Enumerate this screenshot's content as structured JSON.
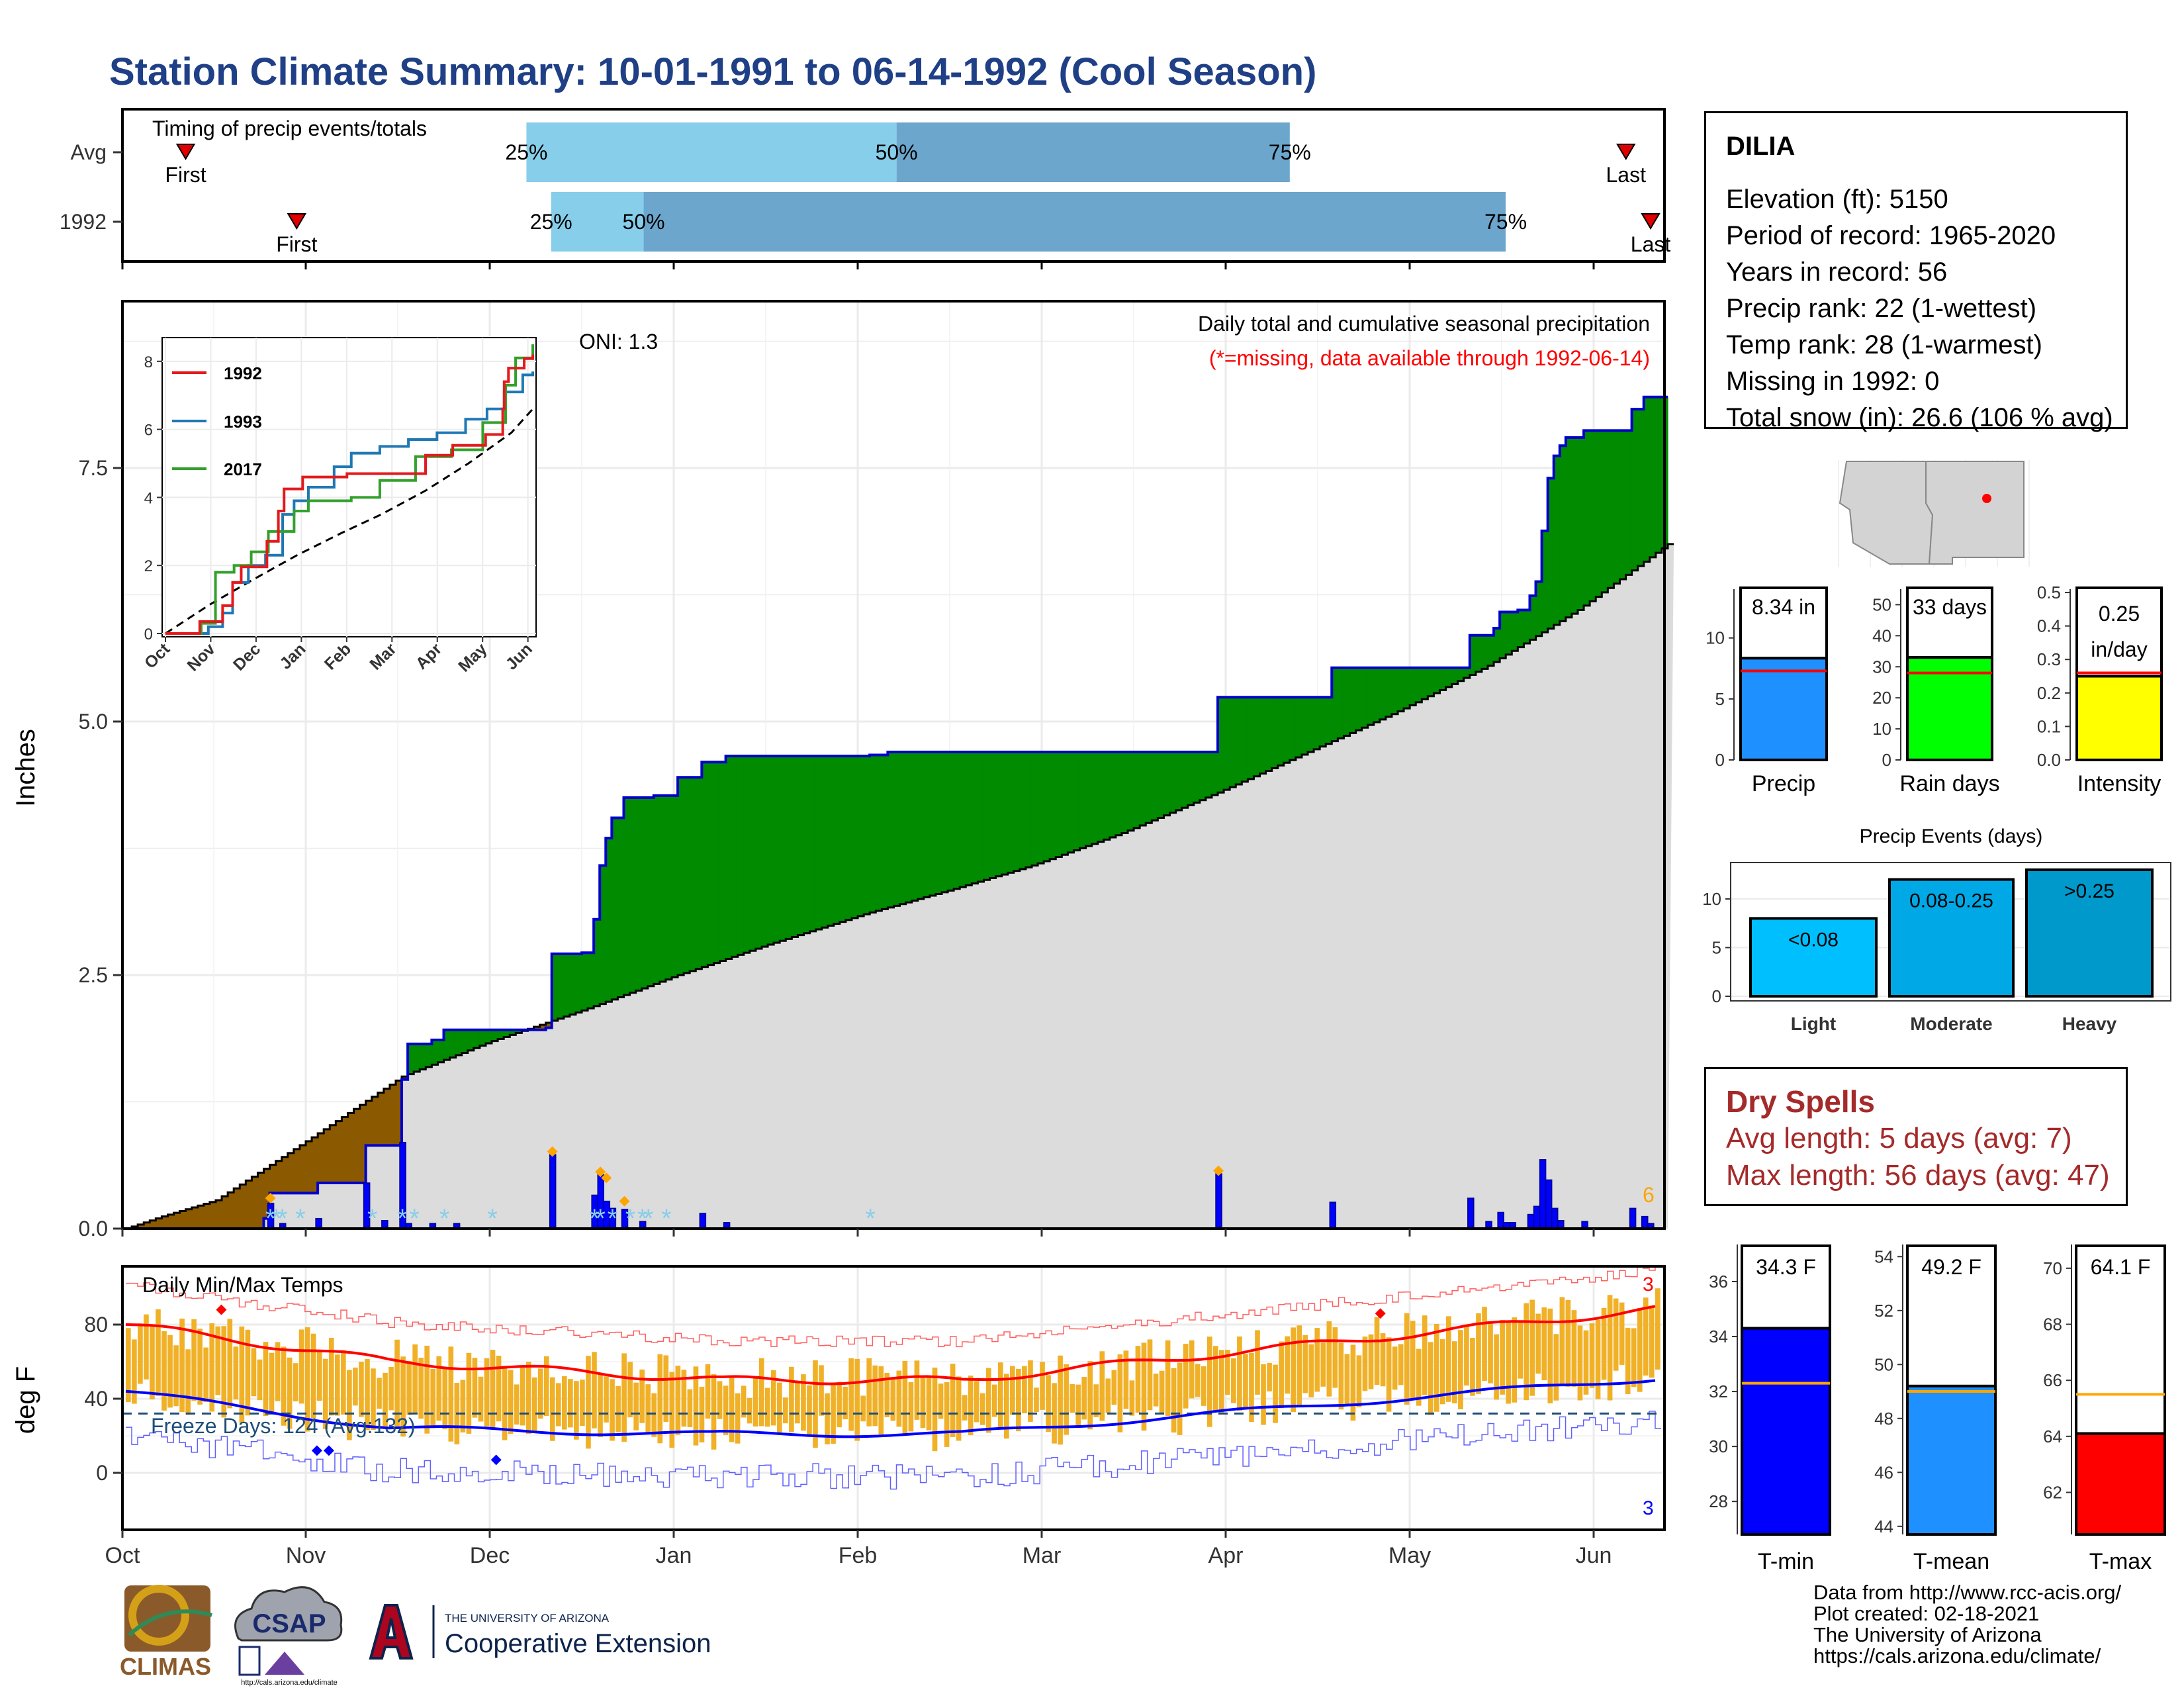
{
  "title": "Station Climate Summary: 10-01-1991 to 06-14-1992 (Cool Season)",
  "timing": {
    "label": "Timing of precip events/totals",
    "rows": [
      "Avg",
      "1992"
    ],
    "pct_labels": [
      "25%",
      "50%",
      "75%"
    ],
    "first_label": "First",
    "last_label": "Last",
    "avg": {
      "first": 0.041,
      "p25": 0.262,
      "p50": 0.502,
      "p75": 0.757,
      "last": 0.975
    },
    "y1992": {
      "first": 0.113,
      "p25": 0.278,
      "p50": 0.338,
      "p75": 0.897,
      "last": 0.991
    },
    "colors": {
      "light": "#87ceeb",
      "dark": "#6ca6cd",
      "marker": "#e00000"
    }
  },
  "precip_panel": {
    "ylabel": "Inches",
    "yticks": [
      "0.0",
      "2.5",
      "5.0",
      "7.5"
    ],
    "oni": "ONI: 1.3",
    "note1": "Daily total and cumulative seasonal precipitation",
    "note2": "(*=missing, data available through 1992-06-14)",
    "count": "6",
    "colors": {
      "above": "#008b00",
      "below": "#8b5a00",
      "avg": "#dcdcdc",
      "line": "#0000cd",
      "bar": "#0000ff",
      "note2": "#ff0000",
      "count": "#ffa500",
      "snow": "#87ceeb"
    }
  },
  "inset": {
    "legend": [
      "1992",
      "1993",
      "2017"
    ],
    "legend_colors": [
      "#e31a1c",
      "#1f78b4",
      "#33a02c"
    ],
    "yticks": [
      "0",
      "2",
      "4",
      "6",
      "8"
    ],
    "xticks": [
      "Oct",
      "Nov",
      "Dec",
      "Jan",
      "Feb",
      "Mar",
      "Apr",
      "May",
      "Jun"
    ]
  },
  "months": [
    "Oct",
    "Nov",
    "Dec",
    "Jan",
    "Feb",
    "Mar",
    "Apr",
    "May",
    "Jun"
  ],
  "temp_panel": {
    "label": "Daily Min/Max Temps",
    "ylabel": "deg F",
    "yticks": [
      "0",
      "40",
      "80"
    ],
    "freeze": "Freeze Days: 124 (Avg:132)",
    "count_top": "3",
    "count_bottom": "3",
    "colors": {
      "bar": "#f0b128",
      "max": "#ff0000",
      "min": "#0000ff",
      "freeze": "#1f4e79"
    }
  },
  "station": {
    "name": "DILIA",
    "lines": [
      "Elevation (ft): 5150",
      "Period of record: 1965-2020",
      "Years in record: 56",
      "Precip rank: 22 (1-wettest)",
      "Temp rank: 28 (1-warmest)",
      "Missing in 1992: 0",
      "Total snow (in): 26.6 (106 % avg)"
    ]
  },
  "mini_bars": [
    {
      "label": "Precip",
      "value_text": "8.34 in",
      "value": 8.34,
      "avg": 7.3,
      "ymax": 14,
      "yticks": [
        "0",
        "5",
        "10"
      ],
      "tick_vals": [
        0,
        5,
        10
      ],
      "color": "#1e90ff"
    },
    {
      "label": "Rain days",
      "value_text": "33 days",
      "value": 33,
      "avg": 28,
      "ymax": 55,
      "yticks": [
        "0",
        "10",
        "20",
        "30",
        "40",
        "50"
      ],
      "tick_vals": [
        0,
        10,
        20,
        30,
        40,
        50
      ],
      "color": "#00ff00"
    },
    {
      "label": "Intensity",
      "value_text": "0.25 in/day",
      "value": 0.25,
      "avg": 0.26,
      "ymax": 0.51,
      "yticks": [
        "0.0",
        "0.1",
        "0.2",
        "0.3",
        "0.4",
        "0.5"
      ],
      "tick_vals": [
        0,
        0.1,
        0.2,
        0.3,
        0.4,
        0.5
      ],
      "color": "#ffff00"
    }
  ],
  "events": {
    "title": "Precip Events (days)",
    "categories": [
      "Light",
      "Moderate",
      "Heavy"
    ],
    "bar_labels": [
      "<0.08",
      "0.08-0.25",
      ">0.25"
    ],
    "values": [
      8,
      12,
      13
    ],
    "yticks": [
      "0",
      "5",
      "10"
    ],
    "colors": [
      "#00bfff",
      "#00a8e6",
      "#0099cc"
    ]
  },
  "dry_spells": {
    "title": "Dry Spells",
    "avg": "Avg length: 5 days (avg: 7)",
    "max": "Max length: 56 days (avg: 47)"
  },
  "temp_bars": [
    {
      "label": "T-min",
      "value_text": "34.3 F",
      "value": 34.3,
      "avg": 32.3,
      "ymin": 26.8,
      "ymax": 37.3,
      "tick_vals": [
        28,
        30,
        32,
        34,
        36
      ],
      "yticks": [
        "28",
        "30",
        "32",
        "34",
        "36"
      ],
      "color": "#0000ff"
    },
    {
      "label": "T-mean",
      "value_text": "49.2 F",
      "value": 49.2,
      "avg": 49.0,
      "ymin": 43.7,
      "ymax": 54.4,
      "tick_vals": [
        44,
        46,
        48,
        50,
        52,
        54
      ],
      "yticks": [
        "44",
        "46",
        "48",
        "50",
        "52",
        "54"
      ],
      "color": "#1e90ff"
    },
    {
      "label": "T-max",
      "value_text": "64.1 F",
      "value": 64.1,
      "avg": 65.5,
      "ymin": 60.5,
      "ymax": 70.8,
      "tick_vals": [
        62,
        64,
        66,
        68,
        70
      ],
      "yticks": [
        "62",
        "64",
        "66",
        "68",
        "70"
      ],
      "color": "#ff0000"
    }
  ],
  "credits": [
    "Data from http://www.rcc-acis.org/",
    "Plot created: 02-18-2021",
    "The University of Arizona",
    "https://cals.arizona.edu/climate/"
  ],
  "logos": {
    "climas": "CLIMAS",
    "csap": "CSAP",
    "csap_url": "http://cals.arizona.edu/climate",
    "ua_small": "THE UNIVERSITY OF ARIZONA",
    "ua_big": "Cooperative Extension"
  }
}
